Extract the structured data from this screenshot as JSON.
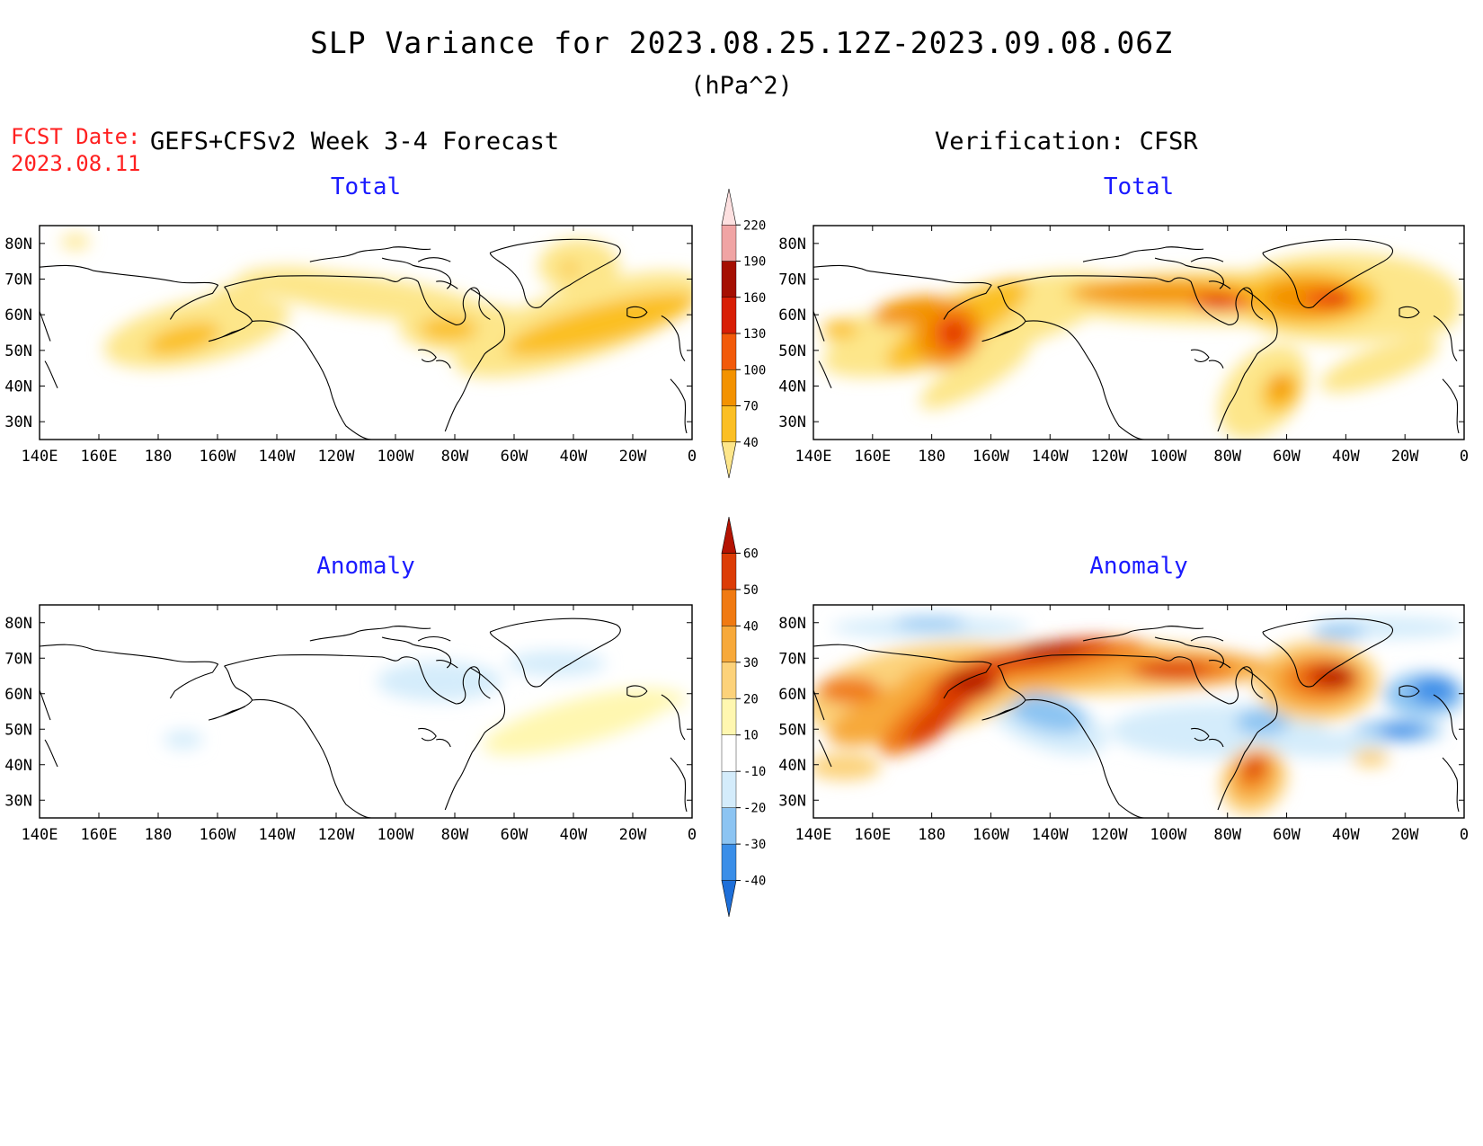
{
  "title": "SLP Variance for 2023.08.25.12Z-2023.09.08.06Z",
  "units": "(hPa^2)",
  "forecast": {
    "label": "FCST Date:",
    "date": "2023.08.11",
    "header": "GEFS+CFSv2 Week 3-4 Forecast"
  },
  "verification": {
    "header": "Verification: CFSR"
  },
  "panels": [
    {
      "id": "fcst-total",
      "title": "Total"
    },
    {
      "id": "verif-total",
      "title": "Total"
    },
    {
      "id": "fcst-anomaly",
      "title": "Anomaly"
    },
    {
      "id": "verif-anomaly",
      "title": "Anomaly"
    }
  ],
  "map": {
    "lon_range": [
      140,
      360
    ],
    "lat_range": [
      25,
      85
    ],
    "lon_ticks": [
      "140E",
      "160E",
      "180",
      "160W",
      "140W",
      "120W",
      "100W",
      "80W",
      "60W",
      "40W",
      "20W",
      "0"
    ],
    "lat_ticks": [
      "30N",
      "40N",
      "50N",
      "60N",
      "70N",
      "80N"
    ]
  },
  "colorbars": {
    "total": {
      "levels": [
        "40",
        "70",
        "100",
        "130",
        "160",
        "190",
        "220"
      ],
      "colors": [
        "#fde68a",
        "#fbbf24",
        "#f39200",
        "#f25a0a",
        "#d81e05",
        "#a50f02",
        "#f0a4a4",
        "#fde0e0"
      ]
    },
    "anomaly": {
      "levels": [
        "-40",
        "-30",
        "-20",
        "-10",
        "10",
        "20",
        "30",
        "40",
        "50",
        "60"
      ],
      "colors": [
        "#1e6fd9",
        "#3a8ee8",
        "#8cc4f2",
        "#d4ecfb",
        "#ffffff",
        "#fff7b0",
        "#fcd27a",
        "#f7a93a",
        "#f07a12",
        "#dc3c06",
        "#b41302"
      ]
    }
  }
}
